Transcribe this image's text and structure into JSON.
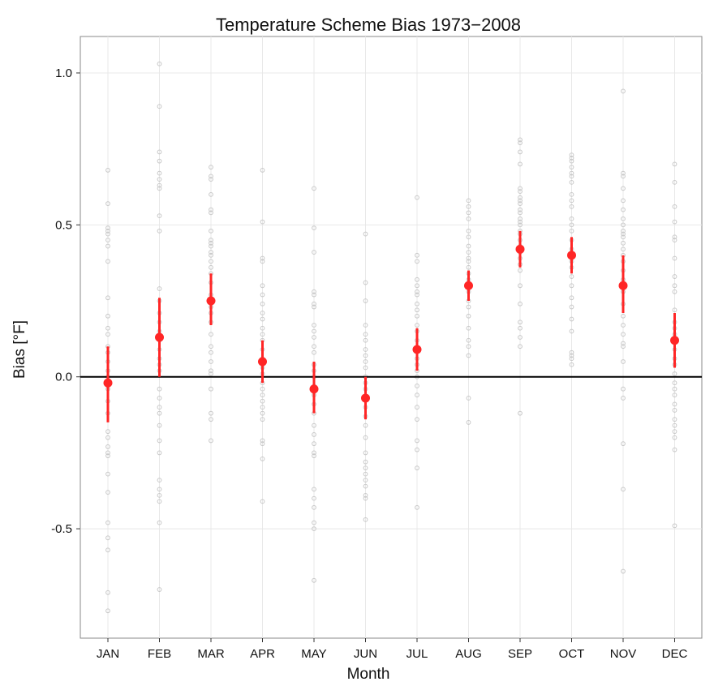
{
  "chart_data": {
    "type": "scatter",
    "title": "Temperature Scheme Bias 1973−2008",
    "xlabel": "Month",
    "ylabel": "Bias [°F]",
    "categories": [
      "JAN",
      "FEB",
      "MAR",
      "APR",
      "MAY",
      "JUN",
      "JUL",
      "AUG",
      "SEP",
      "OCT",
      "NOV",
      "DEC"
    ],
    "ylim": [
      -0.86,
      1.12
    ],
    "yticks": [
      -0.5,
      0.0,
      0.5,
      1.0
    ],
    "ytick_labels": [
      "-0.5",
      "0.0",
      "0.5",
      "1.0"
    ],
    "grid": true,
    "reference_line": 0.0,
    "colors": {
      "mean": "#ff2626",
      "obs": "#c8c8c8",
      "grid": "#e8e8e8",
      "zero_line": "#000000",
      "panel_border": "#888888"
    },
    "series": [
      {
        "role": "mean",
        "values": [
          -0.02,
          0.13,
          0.25,
          0.05,
          -0.04,
          -0.07,
          0.09,
          0.3,
          0.42,
          0.4,
          0.3,
          0.12
        ]
      },
      {
        "role": "error_lower",
        "values": [
          -0.15,
          0.0,
          0.17,
          -0.02,
          -0.12,
          -0.14,
          0.02,
          0.25,
          0.36,
          0.34,
          0.21,
          0.03
        ]
      },
      {
        "role": "error_upper",
        "values": [
          0.1,
          0.26,
          0.34,
          0.12,
          0.05,
          0.0,
          0.16,
          0.35,
          0.48,
          0.46,
          0.4,
          0.21
        ]
      }
    ],
    "observations": [
      [
        0.68,
        0.57,
        0.49,
        0.48,
        0.47,
        0.45,
        0.43,
        0.38,
        0.26,
        0.2,
        0.16,
        0.14,
        0.1,
        0.08,
        0.05,
        0.02,
        0.0,
        -0.04,
        -0.08,
        -0.12,
        -0.18,
        -0.2,
        -0.23,
        -0.25,
        -0.26,
        -0.32,
        -0.38,
        -0.48,
        -0.53,
        -0.57,
        -0.71,
        -0.77
      ],
      [
        1.03,
        0.89,
        0.74,
        0.71,
        0.67,
        0.65,
        0.63,
        0.62,
        0.53,
        0.48,
        0.29,
        0.25,
        0.21,
        0.18,
        0.15,
        0.12,
        0.09,
        0.06,
        0.04,
        0.02,
        -0.04,
        -0.07,
        -0.1,
        -0.12,
        -0.16,
        -0.21,
        -0.25,
        -0.34,
        -0.37,
        -0.39,
        -0.41,
        -0.48,
        -0.7
      ],
      [
        0.69,
        0.66,
        0.65,
        0.6,
        0.55,
        0.54,
        0.48,
        0.45,
        0.44,
        0.43,
        0.41,
        0.4,
        0.38,
        0.36,
        0.34,
        0.31,
        0.27,
        0.23,
        0.21,
        0.18,
        0.14,
        0.1,
        0.08,
        0.05,
        0.02,
        0.01,
        -0.04,
        -0.12,
        -0.14,
        -0.21
      ],
      [
        0.68,
        0.51,
        0.39,
        0.38,
        0.3,
        0.27,
        0.24,
        0.21,
        0.19,
        0.16,
        0.14,
        0.12,
        0.09,
        0.06,
        0.03,
        0.01,
        -0.02,
        -0.04,
        -0.06,
        -0.08,
        -0.1,
        -0.12,
        -0.14,
        -0.21,
        -0.22,
        -0.27,
        -0.41
      ],
      [
        0.62,
        0.49,
        0.41,
        0.28,
        0.27,
        0.24,
        0.23,
        0.17,
        0.15,
        0.13,
        0.1,
        0.08,
        0.04,
        0.02,
        0.0,
        -0.03,
        -0.06,
        -0.09,
        -0.12,
        -0.16,
        -0.19,
        -0.22,
        -0.25,
        -0.26,
        -0.37,
        -0.4,
        -0.43,
        -0.48,
        -0.5,
        -0.67
      ],
      [
        0.47,
        0.31,
        0.25,
        0.17,
        0.14,
        0.12,
        0.09,
        0.07,
        0.05,
        0.03,
        0.0,
        -0.02,
        -0.04,
        -0.07,
        -0.1,
        -0.13,
        -0.16,
        -0.2,
        -0.25,
        -0.28,
        -0.3,
        -0.32,
        -0.34,
        -0.36,
        -0.39,
        -0.4,
        -0.47
      ],
      [
        0.59,
        0.4,
        0.38,
        0.32,
        0.3,
        0.28,
        0.27,
        0.24,
        0.22,
        0.2,
        0.17,
        0.15,
        0.12,
        0.09,
        0.06,
        0.04,
        0.02,
        0.0,
        -0.03,
        -0.06,
        -0.1,
        -0.14,
        -0.21,
        -0.24,
        -0.3,
        -0.43
      ],
      [
        0.58,
        0.56,
        0.54,
        0.52,
        0.48,
        0.46,
        0.43,
        0.41,
        0.39,
        0.38,
        0.36,
        0.34,
        0.32,
        0.3,
        0.28,
        0.25,
        0.23,
        0.2,
        0.16,
        0.12,
        0.1,
        0.07,
        -0.07,
        -0.15
      ],
      [
        0.78,
        0.77,
        0.74,
        0.7,
        0.62,
        0.61,
        0.59,
        0.58,
        0.57,
        0.55,
        0.54,
        0.52,
        0.51,
        0.5,
        0.48,
        0.47,
        0.45,
        0.43,
        0.41,
        0.39,
        0.37,
        0.35,
        0.3,
        0.24,
        0.18,
        0.16,
        0.13,
        0.1,
        -0.12
      ],
      [
        0.73,
        0.72,
        0.71,
        0.69,
        0.67,
        0.66,
        0.64,
        0.6,
        0.58,
        0.56,
        0.52,
        0.5,
        0.48,
        0.45,
        0.42,
        0.38,
        0.36,
        0.33,
        0.3,
        0.26,
        0.23,
        0.19,
        0.15,
        0.08,
        0.07,
        0.06,
        0.04
      ],
      [
        0.94,
        0.67,
        0.66,
        0.62,
        0.58,
        0.55,
        0.52,
        0.5,
        0.48,
        0.47,
        0.46,
        0.44,
        0.42,
        0.4,
        0.38,
        0.35,
        0.32,
        0.28,
        0.24,
        0.2,
        0.17,
        0.14,
        0.11,
        0.1,
        0.05,
        -0.04,
        -0.07,
        -0.22,
        -0.37,
        -0.64
      ],
      [
        0.7,
        0.64,
        0.56,
        0.51,
        0.46,
        0.45,
        0.39,
        0.33,
        0.3,
        0.28,
        0.22,
        0.18,
        0.16,
        0.14,
        0.12,
        0.09,
        0.06,
        0.04,
        0.01,
        -0.02,
        -0.04,
        -0.06,
        -0.09,
        -0.11,
        -0.14,
        -0.16,
        -0.18,
        -0.2,
        -0.24,
        -0.49
      ]
    ]
  }
}
